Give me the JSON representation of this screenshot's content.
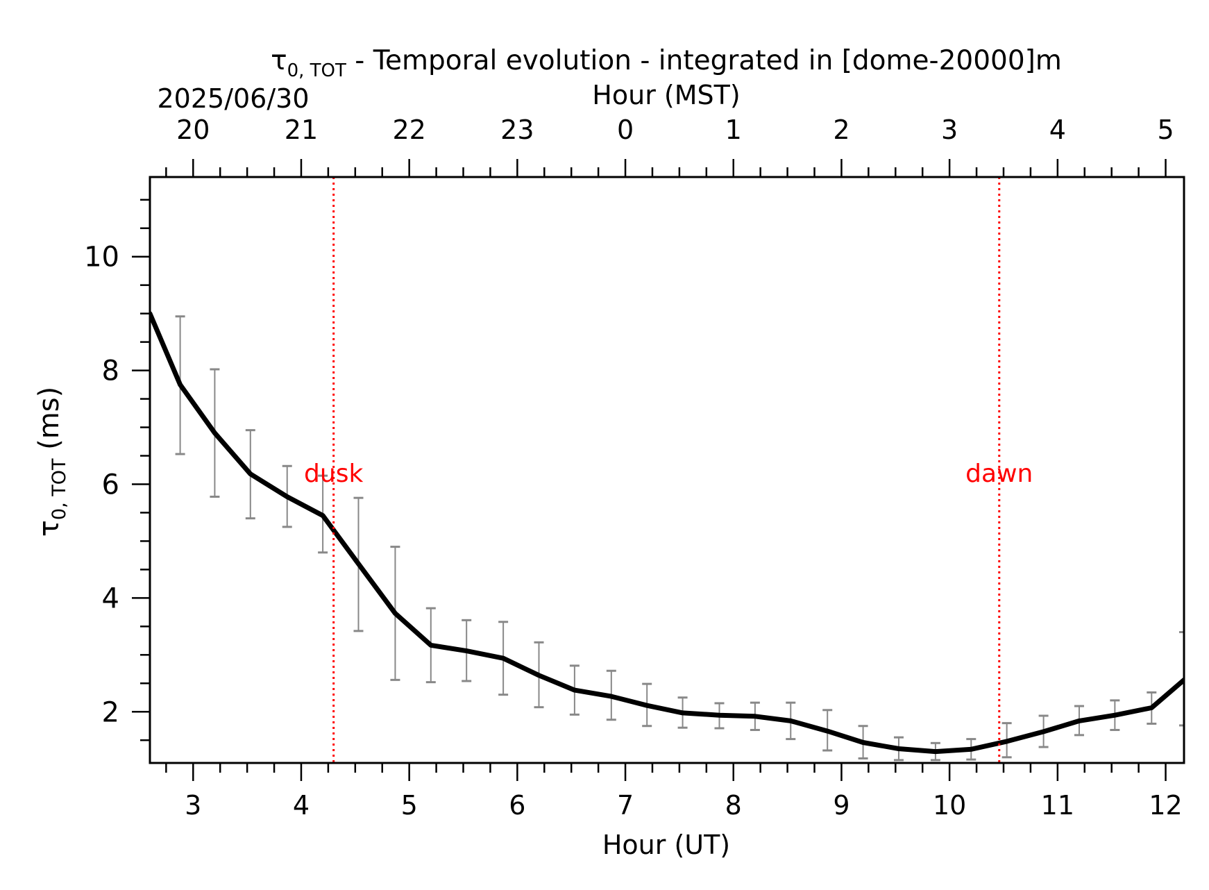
{
  "chart_data": {
    "type": "line",
    "title": {
      "symbol": "τ",
      "subscript": "0, TOT",
      "text": " - Temporal evolution - integrated in [dome-20000]m"
    },
    "date_label": "2025/06/30",
    "xlabel": "Hour (UT)",
    "x2label": "Hour (MST)",
    "ylabel": {
      "symbol": "τ",
      "subscript": "0, TOT",
      "text": " (ms)"
    },
    "xlim": [
      2.6,
      12.17
    ],
    "ylim": [
      1.1,
      11.4
    ],
    "xticks": [
      3,
      4,
      5,
      6,
      7,
      8,
      9,
      10,
      11,
      12
    ],
    "xtick_labels": [
      "3",
      "4",
      "5",
      "6",
      "7",
      "8",
      "9",
      "10",
      "11",
      "12"
    ],
    "x2ticks": [
      3,
      4,
      5,
      6,
      7,
      8,
      9,
      10,
      11,
      12
    ],
    "x2tick_labels": [
      "20",
      "21",
      "22",
      "23",
      "0",
      "1",
      "2",
      "3",
      "4",
      "5"
    ],
    "yticks": [
      2,
      4,
      6,
      8,
      10
    ],
    "ytick_labels": [
      "2",
      "4",
      "6",
      "8",
      "10"
    ],
    "grid": false,
    "colors": {
      "line": "#000000",
      "errorbar": "#888888",
      "markers": "#ff0000"
    },
    "series": [
      {
        "x": [
          2.6,
          2.88,
          3.2,
          3.53,
          3.87,
          4.2,
          4.53,
          4.87,
          5.2,
          5.53,
          5.87,
          6.2,
          6.53,
          6.87,
          7.2,
          7.53,
          7.87,
          8.2,
          8.53,
          8.87,
          9.2,
          9.53,
          9.87,
          10.2,
          10.53,
          10.87,
          11.2,
          11.53,
          11.87,
          12.17
        ],
        "y": [
          9.0,
          7.75,
          6.9,
          6.18,
          5.78,
          5.45,
          4.6,
          3.73,
          3.17,
          3.07,
          2.94,
          2.64,
          2.38,
          2.27,
          2.11,
          1.98,
          1.94,
          1.92,
          1.84,
          1.66,
          1.46,
          1.35,
          1.3,
          1.34,
          1.48,
          1.65,
          1.84,
          1.94,
          2.07,
          2.56
        ],
        "err_low": [
          null,
          6.53,
          5.78,
          5.4,
          5.25,
          4.8,
          3.42,
          2.56,
          2.52,
          2.54,
          2.3,
          2.08,
          1.95,
          1.86,
          1.75,
          1.72,
          1.71,
          1.68,
          1.52,
          1.32,
          1.18,
          1.15,
          1.15,
          1.16,
          1.2,
          1.38,
          1.59,
          1.68,
          1.79,
          1.76
        ],
        "err_high": [
          null,
          8.95,
          8.02,
          6.95,
          6.32,
          6.15,
          5.76,
          4.9,
          3.82,
          3.61,
          3.58,
          3.22,
          2.81,
          2.72,
          2.49,
          2.25,
          2.15,
          2.16,
          2.16,
          2.03,
          1.75,
          1.55,
          1.45,
          1.52,
          1.8,
          1.93,
          2.1,
          2.2,
          2.34,
          3.4
        ]
      }
    ],
    "vlines": [
      {
        "x": 4.3,
        "label": "dusk",
        "label_y": 6.2
      },
      {
        "x": 10.46,
        "label": "dawn",
        "label_y": 6.2
      }
    ]
  }
}
